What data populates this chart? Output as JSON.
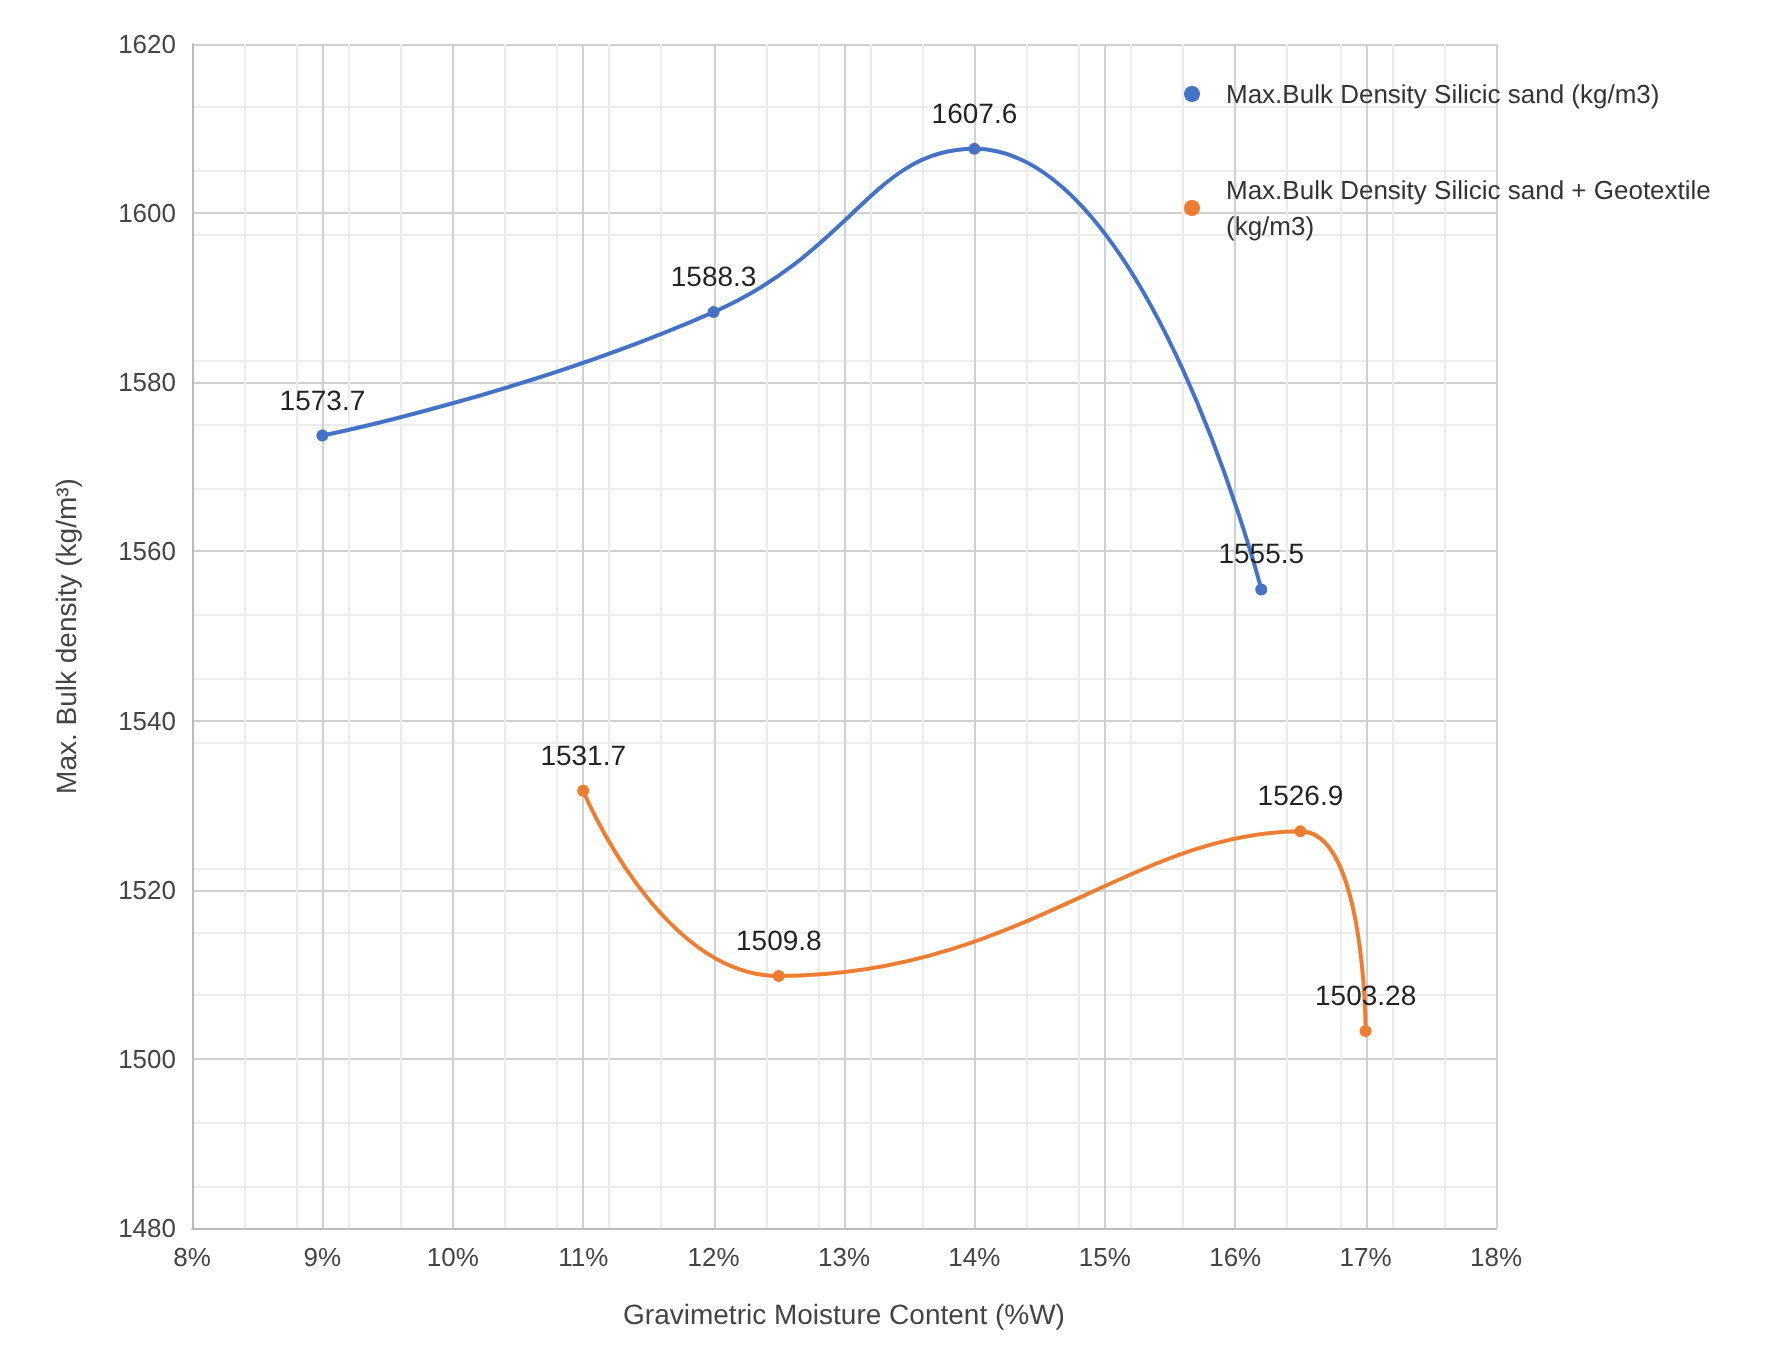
{
  "chart_data": {
    "type": "line",
    "xlabel": "Gravimetric Moisture Content (%W)",
    "ylabel": "Max. Bulk density (kg/m³)",
    "xlim": [
      8,
      18
    ],
    "xticks": [
      {
        "value": 8,
        "label": "8%"
      },
      {
        "value": 9,
        "label": "9%"
      },
      {
        "value": 10,
        "label": "10%"
      },
      {
        "value": 11,
        "label": "11%"
      },
      {
        "value": 12,
        "label": "12%"
      },
      {
        "value": 13,
        "label": "13%"
      },
      {
        "value": 14,
        "label": "14%"
      },
      {
        "value": 15,
        "label": "15%"
      },
      {
        "value": 16,
        "label": "16%"
      },
      {
        "value": 17,
        "label": "17%"
      },
      {
        "value": 18,
        "label": "18%"
      }
    ],
    "ylim": [
      1480,
      1620
    ],
    "yticks": [
      1480,
      1500,
      1520,
      1540,
      1560,
      1580,
      1600,
      1620
    ],
    "series": [
      {
        "name": "Max.Bulk Density Silicic sand (kg/m3)",
        "color": "#4472c4",
        "x": [
          9,
          12,
          14,
          16.2
        ],
        "values": [
          1573.7,
          1588.3,
          1607.6,
          1555.5
        ]
      },
      {
        "name": "Max.Bulk Density Silicic sand + Geotextile (kg/m3)",
        "color": "#ed7d31",
        "x": [
          11,
          12.5,
          16.5,
          17
        ],
        "values": [
          1531.7,
          1509.8,
          1526.9,
          1503.28
        ]
      }
    ],
    "grid": true,
    "legend": "top right",
    "marker": "circle",
    "line_style": "solid",
    "data_labels": true
  }
}
